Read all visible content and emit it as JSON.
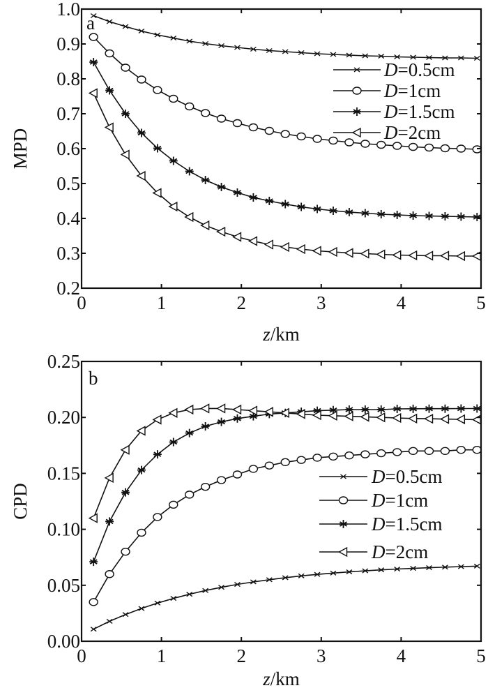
{
  "chart_data": [
    {
      "type": "line",
      "panel_label": "a",
      "title": "",
      "xlabel": {
        "italic": "z",
        "rest": "/km"
      },
      "ylabel": "MPD",
      "xlim": [
        0,
        5
      ],
      "ylim": [
        0.2,
        1.0
      ],
      "xticks": [
        "0",
        "1",
        "2",
        "3",
        "4",
        "5"
      ],
      "yticks": [
        "0.2",
        "0.3",
        "0.4",
        "0.5",
        "0.6",
        "0.7",
        "0.8",
        "0.9",
        "1.0"
      ],
      "ytick_values": [
        0.2,
        0.3,
        0.4,
        0.5,
        0.6,
        0.7,
        0.8,
        0.9,
        1.0
      ],
      "grid": false,
      "legend_placement": "upper-right",
      "x": [
        0.15,
        0.35,
        0.55,
        0.75,
        0.95,
        1.15,
        1.35,
        1.55,
        1.75,
        1.95,
        2.15,
        2.35,
        2.55,
        2.75,
        2.95,
        3.15,
        3.35,
        3.55,
        3.75,
        3.95,
        4.15,
        4.35,
        4.55,
        4.75,
        4.95
      ],
      "series": [
        {
          "name": "D=0.5cm",
          "marker": "x",
          "values": [
            0.981,
            0.964,
            0.95,
            0.937,
            0.926,
            0.917,
            0.908,
            0.901,
            0.895,
            0.89,
            0.885,
            0.881,
            0.878,
            0.875,
            0.872,
            0.87,
            0.868,
            0.866,
            0.865,
            0.863,
            0.862,
            0.861,
            0.86,
            0.86,
            0.859
          ]
        },
        {
          "name": "D=1cm",
          "marker": "circle",
          "values": [
            0.92,
            0.873,
            0.832,
            0.798,
            0.768,
            0.743,
            0.721,
            0.702,
            0.686,
            0.673,
            0.661,
            0.651,
            0.642,
            0.635,
            0.628,
            0.623,
            0.618,
            0.614,
            0.611,
            0.608,
            0.605,
            0.603,
            0.601,
            0.6,
            0.598
          ]
        },
        {
          "name": "D=1.5cm",
          "marker": "star",
          "values": [
            0.848,
            0.767,
            0.7,
            0.645,
            0.601,
            0.565,
            0.535,
            0.51,
            0.49,
            0.474,
            0.46,
            0.45,
            0.441,
            0.433,
            0.427,
            0.422,
            0.418,
            0.415,
            0.412,
            0.41,
            0.408,
            0.407,
            0.406,
            0.405,
            0.404
          ]
        },
        {
          "name": "D=2cm",
          "marker": "triangle-left",
          "values": [
            0.759,
            0.661,
            0.583,
            0.522,
            0.473,
            0.434,
            0.404,
            0.38,
            0.362,
            0.347,
            0.335,
            0.325,
            0.318,
            0.312,
            0.307,
            0.304,
            0.301,
            0.299,
            0.297,
            0.295,
            0.294,
            0.293,
            0.293,
            0.292,
            0.292
          ]
        }
      ]
    },
    {
      "type": "line",
      "panel_label": "b",
      "title": "",
      "xlabel": {
        "italic": "z",
        "rest": "/km"
      },
      "ylabel": "CPD",
      "xlim": [
        0,
        5
      ],
      "ylim": [
        0.0,
        0.25
      ],
      "xticks": [
        "0",
        "1",
        "2",
        "3",
        "4",
        "5"
      ],
      "yticks": [
        "0.00",
        "0.05",
        "0.10",
        "0.15",
        "0.20",
        "0.25"
      ],
      "ytick_values": [
        0,
        0.05,
        0.1,
        0.15,
        0.2,
        0.25
      ],
      "grid": false,
      "legend_placement": "center-right",
      "x": [
        0.15,
        0.35,
        0.55,
        0.75,
        0.95,
        1.15,
        1.35,
        1.55,
        1.75,
        1.95,
        2.15,
        2.35,
        2.55,
        2.75,
        2.95,
        3.15,
        3.35,
        3.55,
        3.75,
        3.95,
        4.15,
        4.35,
        4.55,
        4.75,
        4.95
      ],
      "series": [
        {
          "name": "D=0.5cm",
          "marker": "x",
          "values": [
            0.0108,
            0.0178,
            0.0239,
            0.0293,
            0.0341,
            0.0383,
            0.042,
            0.0453,
            0.0482,
            0.0508,
            0.053,
            0.055,
            0.0568,
            0.0584,
            0.0597,
            0.0609,
            0.062,
            0.0629,
            0.0638,
            0.0645,
            0.0651,
            0.0657,
            0.0662,
            0.0667,
            0.0671
          ]
        },
        {
          "name": "D=1cm",
          "marker": "circle",
          "values": [
            0.035,
            0.06,
            0.08,
            0.097,
            0.111,
            0.122,
            0.131,
            0.138,
            0.144,
            0.149,
            0.154,
            0.157,
            0.16,
            0.162,
            0.164,
            0.165,
            0.166,
            0.167,
            0.168,
            0.169,
            0.17,
            0.17,
            0.17,
            0.171,
            0.171
          ]
        },
        {
          "name": "D=1.5cm",
          "marker": "star",
          "values": [
            0.071,
            0.107,
            0.133,
            0.153,
            0.167,
            0.178,
            0.186,
            0.192,
            0.196,
            0.199,
            0.201,
            0.203,
            0.204,
            0.205,
            0.206,
            0.2065,
            0.207,
            0.207,
            0.207,
            0.2076,
            0.2077,
            0.2078,
            0.2078,
            0.2079,
            0.2079
          ]
        },
        {
          "name": "D=2cm",
          "marker": "triangle-left",
          "values": [
            0.11,
            0.146,
            0.171,
            0.188,
            0.198,
            0.204,
            0.207,
            0.208,
            0.208,
            0.207,
            0.206,
            0.205,
            0.204,
            0.203,
            0.202,
            0.2015,
            0.201,
            0.2005,
            0.2,
            0.1995,
            0.199,
            0.1988,
            0.1985,
            0.1983,
            0.198
          ]
        }
      ]
    }
  ]
}
